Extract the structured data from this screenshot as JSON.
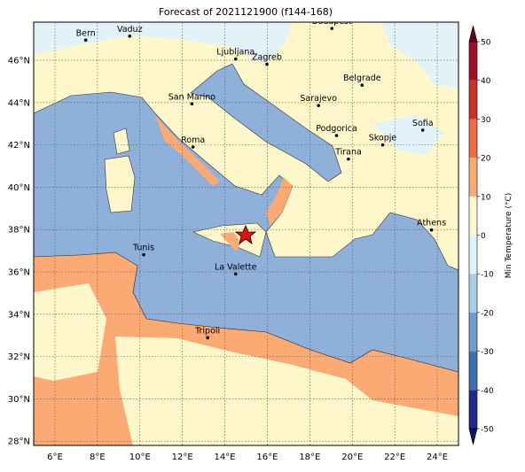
{
  "title": "Forecast of 2021121900 (f144-168)",
  "map": {
    "lonlim": [
      5,
      25
    ],
    "latlim": [
      27.8,
      47.8
    ],
    "lonticks": [
      {
        "value": 6,
        "label": "6°E"
      },
      {
        "value": 8,
        "label": "8°E"
      },
      {
        "value": 10,
        "label": "10°E"
      },
      {
        "value": 12,
        "label": "12°E"
      },
      {
        "value": 14,
        "label": "14°E"
      },
      {
        "value": 16,
        "label": "16°E"
      },
      {
        "value": 18,
        "label": "18°E"
      },
      {
        "value": 20,
        "label": "20°E"
      },
      {
        "value": 22,
        "label": "22°E"
      },
      {
        "value": 24,
        "label": "24°E"
      }
    ],
    "latticks": [
      {
        "value": 28,
        "label": "28°N"
      },
      {
        "value": 30,
        "label": "30°N"
      },
      {
        "value": 32,
        "label": "32°N"
      },
      {
        "value": 34,
        "label": "34°N"
      },
      {
        "value": 36,
        "label": "36°N"
      },
      {
        "value": 38,
        "label": "38°N"
      },
      {
        "value": 40,
        "label": "40°N"
      },
      {
        "value": 42,
        "label": "42°N"
      },
      {
        "value": 44,
        "label": "44°N"
      },
      {
        "value": 46,
        "label": "46°N"
      }
    ],
    "grid": true,
    "cities": [
      {
        "name": "Bern",
        "lon": 7.45,
        "lat": 46.95
      },
      {
        "name": "Vaduz",
        "lon": 9.52,
        "lat": 47.14
      },
      {
        "name": "Budapest",
        "lon": 19.04,
        "lat": 47.5
      },
      {
        "name": "Ljubljana",
        "lon": 14.51,
        "lat": 46.06
      },
      {
        "name": "Zagreb",
        "lon": 15.98,
        "lat": 45.81
      },
      {
        "name": "Belgrade",
        "lon": 20.46,
        "lat": 44.82
      },
      {
        "name": "San Marino",
        "lon": 12.45,
        "lat": 43.94
      },
      {
        "name": "Sarajevo",
        "lon": 18.41,
        "lat": 43.86
      },
      {
        "name": "Sofia",
        "lon": 23.32,
        "lat": 42.7
      },
      {
        "name": "Podgorica",
        "lon": 19.26,
        "lat": 42.44
      },
      {
        "name": "Skopje",
        "lon": 21.43,
        "lat": 42.0
      },
      {
        "name": "Roma",
        "lon": 12.5,
        "lat": 41.9
      },
      {
        "name": "Tirana",
        "lon": 19.82,
        "lat": 41.33
      },
      {
        "name": "Athens",
        "lon": 23.73,
        "lat": 37.98
      },
      {
        "name": "Tunis",
        "lon": 10.18,
        "lat": 36.81
      },
      {
        "name": "La Valette",
        "lon": 14.51,
        "lat": 35.9
      },
      {
        "name": "Tripoli",
        "lon": 13.19,
        "lat": 32.89
      }
    ]
  },
  "colorbar": {
    "label": "Min Temperature (°C)",
    "lim": [
      -50,
      50
    ],
    "ticks": [
      -50,
      -40,
      -30,
      -20,
      -10,
      0,
      10,
      20,
      30,
      40,
      50
    ],
    "colors": [
      "#1f2a8c",
      "#3d6fb3",
      "#6f9dcc",
      "#a9cde4",
      "#e1f2f9",
      "#fef7cb",
      "#fcaa74",
      "#f06c45",
      "#cf2f2a",
      "#a30f26"
    ],
    "extend_colors": [
      "#0b1561",
      "#6b0318"
    ]
  }
}
